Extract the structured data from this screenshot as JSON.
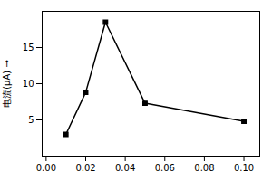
{
  "chart_data": {
    "type": "line",
    "x": [
      0.01,
      0.02,
      0.03,
      0.05,
      0.1
    ],
    "values": [
      3.0,
      8.8,
      18.5,
      7.3,
      4.8
    ],
    "ylabel": "电流(μA)",
    "xlim": [
      -0.002,
      0.108
    ],
    "ylim": [
      0,
      20
    ],
    "xticks": [
      {
        "value": 0,
        "label": "0.00"
      },
      0.02,
      0.04,
      0.06,
      0.08,
      {
        "value": 0.1,
        "label": "0.10"
      }
    ],
    "yticks": [
      5,
      10,
      15
    ],
    "color": "#000000",
    "marker": "square",
    "grid": false
  }
}
